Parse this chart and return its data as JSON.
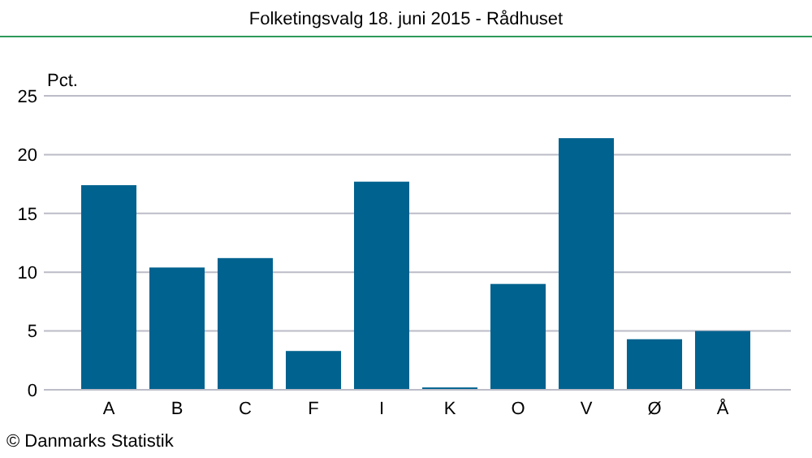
{
  "chart_data": {
    "type": "bar",
    "title": "Folketingsvalg 18. juni 2015 - Rådhuset",
    "ylabel": "Pct.",
    "categories": [
      "A",
      "B",
      "C",
      "F",
      "I",
      "K",
      "O",
      "V",
      "Ø",
      "Å"
    ],
    "values": [
      17.4,
      10.4,
      11.2,
      3.3,
      17.7,
      0.2,
      9.0,
      21.4,
      4.3,
      5.0
    ],
    "color": "#00628f",
    "ylim": [
      0,
      25
    ],
    "yticks": [
      0,
      5,
      10,
      15,
      20,
      25
    ],
    "grid": "y",
    "annotations": [
      "© Danmarks Statistik"
    ]
  }
}
